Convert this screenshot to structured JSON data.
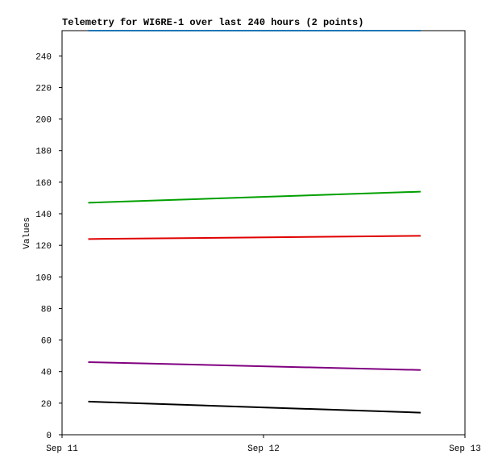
{
  "chart_data": {
    "type": "line",
    "title": "Telemetry for WI6RE-1 over last 240 hours (2 points)",
    "y_label": "Values",
    "x": [
      11.13,
      12.78
    ],
    "xlim": [
      11,
      13
    ],
    "xticks": [
      {
        "value": 11,
        "label": "Sep 11"
      },
      {
        "value": 12,
        "label": "Sep 12"
      },
      {
        "value": 13,
        "label": "Sep 13"
      }
    ],
    "ylim": [
      0,
      256
    ],
    "yticks": [
      0,
      20,
      40,
      60,
      80,
      100,
      120,
      140,
      160,
      180,
      200,
      220,
      240
    ],
    "grid": false,
    "series": [
      {
        "color": "#1f77b4",
        "values": [
          256,
          256
        ]
      },
      {
        "color": "#00a000",
        "values": [
          147,
          154
        ]
      },
      {
        "color": "#e00000",
        "values": [
          124,
          126
        ]
      },
      {
        "color": "#800080",
        "values": [
          46,
          41
        ]
      },
      {
        "color": "#000000",
        "values": [
          21,
          14
        ]
      }
    ]
  }
}
